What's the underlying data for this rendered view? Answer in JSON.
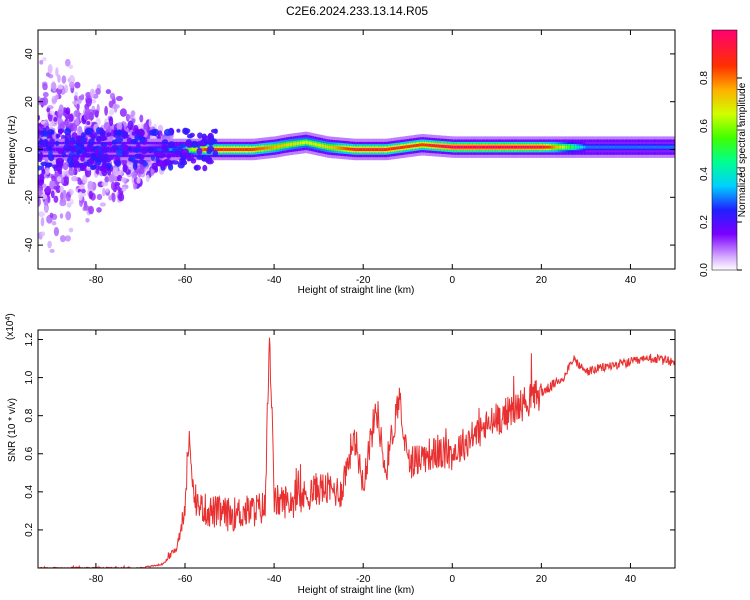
{
  "title": "C2E6.2024.233.13.14.R05",
  "chart_data": [
    {
      "type": "heatmap",
      "xlabel": "Height of straight line (km)",
      "ylabel": "Frequency (Hz)",
      "xlim": [
        -93,
        50
      ],
      "ylim": [
        -50,
        50
      ],
      "xticks": [
        -80,
        -60,
        -40,
        -20,
        0,
        20,
        40
      ],
      "yticks": [
        -40,
        -20,
        0,
        20,
        40
      ],
      "colorbar": {
        "label": "Normalized spectral amplitude",
        "range": [
          0,
          1
        ],
        "ticks": [
          "0.0",
          "0.2",
          "0.4",
          "0.6",
          "0.8"
        ],
        "tick_values": [
          0,
          0.2,
          0.4,
          0.6,
          0.8
        ],
        "colormap": "rainbow-white-to-magenta"
      },
      "ridge": {
        "x": [
          -93,
          -80,
          -70,
          -62,
          -55,
          -45,
          -40,
          -37,
          -33,
          -28,
          -22,
          -15,
          -7,
          0,
          10,
          20,
          30,
          40,
          50
        ],
        "freq": [
          0,
          0,
          0,
          0,
          0,
          0,
          1,
          2,
          3,
          1,
          0,
          0,
          2,
          1,
          1,
          1,
          1,
          1,
          1
        ],
        "amplitude": [
          0.15,
          0.2,
          0.2,
          0.35,
          0.9,
          0.85,
          0.75,
          0.7,
          0.65,
          0.7,
          0.9,
          0.9,
          0.85,
          1.0,
          1.0,
          0.95,
          0.3,
          0.3,
          0.3
        ]
      }
    },
    {
      "type": "line",
      "xlabel": "Height of straight line (km)",
      "ylabel": "SNR (10 * v/v)",
      "yscale_label": "(x10",
      "yscale_exp": "4",
      "yscale_close": ")",
      "xlim": [
        -93,
        50
      ],
      "ylim": [
        0,
        1.25
      ],
      "xticks": [
        -80,
        -60,
        -40,
        -20,
        0,
        20,
        40
      ],
      "yticks": [
        0.2,
        0.4,
        0.6,
        0.8,
        1.0,
        1.2
      ],
      "ytick_labels": [
        "0.2",
        "0.4",
        "0.6",
        "0.8",
        "1.0",
        "1.2"
      ],
      "color": "#e83030",
      "series": [
        {
          "x": [
            -93,
            -80,
            -70,
            -65,
            -62,
            -60,
            -59,
            -58,
            -55,
            -50,
            -45,
            -42,
            -41,
            -40,
            -35,
            -30,
            -25,
            -22,
            -20,
            -17,
            -15,
            -12,
            -10,
            -5,
            0,
            5,
            10,
            15,
            20,
            25,
            27,
            30,
            35,
            40,
            45,
            50
          ],
          "y": [
            0.0,
            0.0,
            0.0,
            0.02,
            0.1,
            0.3,
            0.72,
            0.35,
            0.3,
            0.28,
            0.3,
            0.32,
            1.24,
            0.35,
            0.35,
            0.42,
            0.4,
            0.7,
            0.45,
            0.85,
            0.5,
            0.9,
            0.55,
            0.6,
            0.6,
            0.7,
            0.78,
            0.85,
            0.92,
            1.0,
            1.1,
            1.03,
            1.06,
            1.08,
            1.1,
            1.08
          ]
        }
      ]
    }
  ]
}
